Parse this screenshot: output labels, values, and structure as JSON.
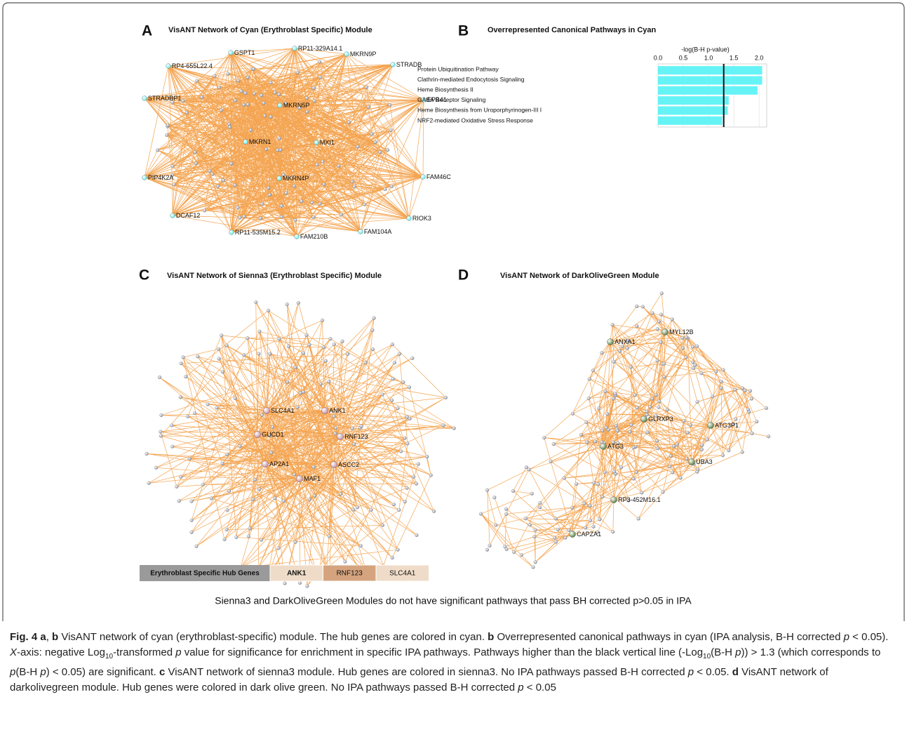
{
  "panels": [
    {
      "letter": "A",
      "title": "VisANT Network of Cyan (Erythroblast Specific) Module",
      "node_color": "#5cecee",
      "hubs": [
        "GSPT1",
        "RP11-329A14.1",
        "MKRN9P",
        "RP4-655L22.4",
        "STRADB",
        "STRADBP1",
        "MKRN5P",
        "EPB41",
        "MKRN1",
        "MXI1",
        "PIP4K2A",
        "MKRN4P",
        "FAM46C",
        "DCAF12",
        "RIOK3",
        "RP11-535M15.2",
        "FAM210B",
        "FAM104A"
      ]
    },
    {
      "letter": "C",
      "title": "VisANT Network of Sienna3 (Erythroblast Specific) Module",
      "node_color": "#c48aa2",
      "hubs": [
        "SLC4A1",
        "ANK1",
        "GUCD1",
        "RNF123",
        "AP2A1",
        "ASCC2",
        "MAF1"
      ],
      "legend": {
        "title": "Erythroblast Specific Hub Genes",
        "title_color": "#9a9a9a",
        "items": [
          {
            "name": "ANK1",
            "color": "#efdcc8"
          },
          {
            "name": "RNF123",
            "color": "#d5a47f"
          },
          {
            "name": "SLC4A1",
            "color": "#efdcc8"
          }
        ]
      }
    },
    {
      "letter": "D",
      "title": "VisANT Network of DarkOliveGreen Module",
      "node_color": "#4f7a3c",
      "hubs": [
        "ANXA1",
        "MYL12B",
        "GLRXP3",
        "ATG3P1",
        "ATG3",
        "UBA3",
        "RP3-452M16.1",
        "CAPZA1"
      ]
    }
  ],
  "chart_data": {
    "type": "bar",
    "orientation": "horizontal",
    "letter": "B",
    "title": "Overrepresented Canonical Pathways in Cyan",
    "xlabel": "-log(B-H p-value)",
    "categories": [
      "Protein Ubiquitination Pathway",
      "Clathrin-mediated Endocytosis Signaling",
      "Heme Biosynthesis II",
      "GABA Receptor Signaling",
      "Heme Biosynthesis from Uroporphyrinogen-III I",
      "NRF2-mediated Oxidative Stress Response"
    ],
    "values": [
      2.06,
      2.06,
      1.97,
      1.4,
      1.38,
      1.27
    ],
    "color": "#66f3f6",
    "threshold": 1.3,
    "xlim": [
      0,
      2.15
    ],
    "xticks": [
      {
        "value": 0,
        "label": "0.0"
      },
      {
        "value": 0.5,
        "label": "0.5"
      },
      {
        "value": 1,
        "label": "1.0"
      },
      {
        "value": 1.5,
        "label": "1.5"
      },
      {
        "value": 2,
        "label": "2.0"
      }
    ],
    "grid": true
  },
  "note": "Sienna3 and DarkOliveGreen Modules do not have significant pathways that pass BH corrected p>0.05 in IPA",
  "caption": [
    {
      "text": "Fig. 4 a",
      "style": "bold"
    },
    {
      "text": ", "
    },
    {
      "text": "b",
      "style": "bold"
    },
    {
      "text": " VisANT network of cyan (erythroblast-specific) module. The hub genes are colored in cyan. "
    },
    {
      "text": "b",
      "style": "bold"
    },
    {
      "text": " Overrepresented canonical pathways in cyan (IPA analysis, B-H corrected "
    },
    {
      "text": "p",
      "style": "italic"
    },
    {
      "text": " < 0.05). "
    },
    {
      "text": "X",
      "style": "italic"
    },
    {
      "text": "-axis: negative Log"
    },
    {
      "text": "10",
      "style": "sub"
    },
    {
      "text": "-transformed "
    },
    {
      "text": "p",
      "style": "italic"
    },
    {
      "text": " value for significance for enrichment in specific IPA pathways. Pathways higher than the black vertical line (-Log"
    },
    {
      "text": "10",
      "style": "sub"
    },
    {
      "text": "(B-H "
    },
    {
      "text": "p",
      "style": "italic"
    },
    {
      "text": "))  > 1.3 (which corresponds to "
    },
    {
      "text": "p",
      "style": "italic"
    },
    {
      "text": "(B-H "
    },
    {
      "text": "p",
      "style": "italic"
    },
    {
      "text": ") < 0.05) are significant. "
    },
    {
      "text": "c",
      "style": "bold"
    },
    {
      "text": " VisANT network of sienna3 module. Hub genes are colored in sienna3. No IPA pathways passed B-H corrected "
    },
    {
      "text": "p",
      "style": "italic"
    },
    {
      "text": " < 0.05. "
    },
    {
      "text": "d",
      "style": "bold"
    },
    {
      "text": " VisANT network of darkolivegreen module. Hub genes were colored in dark olive green. No IPA pathways passed B-H corrected "
    },
    {
      "text": "p",
      "style": "italic"
    },
    {
      "text": " < 0.05"
    }
  ]
}
